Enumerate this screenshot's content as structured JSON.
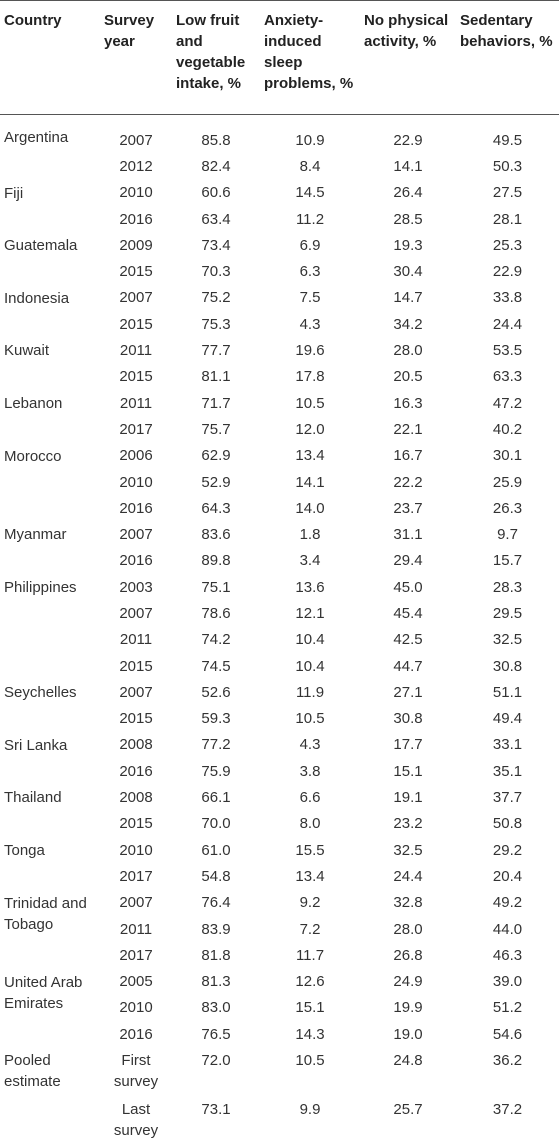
{
  "headers": [
    "Country",
    "Survey year",
    "Low fruit and vegetable intake, %",
    "Anxiety-induced sleep problems, %",
    "No physical activity, %",
    "Sedentary behaviors, %"
  ],
  "rows": [
    {
      "country": "Argentina",
      "year": "2007",
      "fruit": "85.8",
      "sleep": "10.9",
      "nopa": "22.9",
      "sed": "49.5"
    },
    {
      "country": "",
      "year": "2012",
      "fruit": "82.4",
      "sleep": "8.4",
      "nopa": "14.1",
      "sed": "50.3"
    },
    {
      "country": "Fiji",
      "year": "2010",
      "fruit": "60.6",
      "sleep": "14.5",
      "nopa": "26.4",
      "sed": "27.5"
    },
    {
      "country": "",
      "year": "2016",
      "fruit": "63.4",
      "sleep": "11.2",
      "nopa": "28.5",
      "sed": "28.1"
    },
    {
      "country": "Guatemala",
      "year": "2009",
      "fruit": "73.4",
      "sleep": "6.9",
      "nopa": "19.3",
      "sed": "25.3"
    },
    {
      "country": "",
      "year": "2015",
      "fruit": "70.3",
      "sleep": "6.3",
      "nopa": "30.4",
      "sed": "22.9"
    },
    {
      "country": "Indonesia",
      "year": "2007",
      "fruit": "75.2",
      "sleep": "7.5",
      "nopa": "14.7",
      "sed": "33.8"
    },
    {
      "country": "",
      "year": "2015",
      "fruit": "75.3",
      "sleep": "4.3",
      "nopa": "34.2",
      "sed": "24.4"
    },
    {
      "country": "Kuwait",
      "year": "2011",
      "fruit": "77.7",
      "sleep": "19.6",
      "nopa": "28.0",
      "sed": "53.5"
    },
    {
      "country": "",
      "year": "2015",
      "fruit": "81.1",
      "sleep": "17.8",
      "nopa": "20.5",
      "sed": "63.3"
    },
    {
      "country": "Lebanon",
      "year": "2011",
      "fruit": "71.7",
      "sleep": "10.5",
      "nopa": "16.3",
      "sed": "47.2"
    },
    {
      "country": "",
      "year": "2017",
      "fruit": "75.7",
      "sleep": "12.0",
      "nopa": "22.1",
      "sed": "40.2"
    },
    {
      "country": "Morocco",
      "year": "2006",
      "fruit": "62.9",
      "sleep": "13.4",
      "nopa": "16.7",
      "sed": "30.1"
    },
    {
      "country": "",
      "year": "2010",
      "fruit": "52.9",
      "sleep": "14.1",
      "nopa": "22.2",
      "sed": "25.9"
    },
    {
      "country": "",
      "year": "2016",
      "fruit": "64.3",
      "sleep": "14.0",
      "nopa": "23.7",
      "sed": "26.3"
    },
    {
      "country": "Myanmar",
      "year": "2007",
      "fruit": "83.6",
      "sleep": "1.8",
      "nopa": "31.1",
      "sed": "9.7"
    },
    {
      "country": "",
      "year": "2016",
      "fruit": "89.8",
      "sleep": "3.4",
      "nopa": "29.4",
      "sed": "15.7"
    },
    {
      "country": "Philippines",
      "year": "2003",
      "fruit": "75.1",
      "sleep": "13.6",
      "nopa": "45.0",
      "sed": "28.3"
    },
    {
      "country": "",
      "year": "2007",
      "fruit": "78.6",
      "sleep": "12.1",
      "nopa": "45.4",
      "sed": "29.5"
    },
    {
      "country": "",
      "year": "2011",
      "fruit": "74.2",
      "sleep": "10.4",
      "nopa": "42.5",
      "sed": "32.5"
    },
    {
      "country": "",
      "year": "2015",
      "fruit": "74.5",
      "sleep": "10.4",
      "nopa": "44.7",
      "sed": "30.8"
    },
    {
      "country": "Seychelles",
      "year": "2007",
      "fruit": "52.6",
      "sleep": "11.9",
      "nopa": "27.1",
      "sed": "51.1"
    },
    {
      "country": "",
      "year": "2015",
      "fruit": "59.3",
      "sleep": "10.5",
      "nopa": "30.8",
      "sed": "49.4"
    },
    {
      "country": "Sri Lanka",
      "year": "2008",
      "fruit": "77.2",
      "sleep": "4.3",
      "nopa": "17.7",
      "sed": "33.1"
    },
    {
      "country": "",
      "year": "2016",
      "fruit": "75.9",
      "sleep": "3.8",
      "nopa": "15.1",
      "sed": "35.1"
    },
    {
      "country": "Thailand",
      "year": "2008",
      "fruit": "66.1",
      "sleep": "6.6",
      "nopa": "19.1",
      "sed": "37.7"
    },
    {
      "country": "",
      "year": "2015",
      "fruit": "70.0",
      "sleep": "8.0",
      "nopa": "23.2",
      "sed": "50.8"
    },
    {
      "country": "Tonga",
      "year": "2010",
      "fruit": "61.0",
      "sleep": "15.5",
      "nopa": "32.5",
      "sed": "29.2"
    },
    {
      "country": "",
      "year": "2017",
      "fruit": "54.8",
      "sleep": "13.4",
      "nopa": "24.4",
      "sed": "20.4"
    },
    {
      "country": "Trinidad and Tobago",
      "year": "2007",
      "fruit": "76.4",
      "sleep": "9.2",
      "nopa": "32.8",
      "sed": "49.2"
    },
    {
      "country": "",
      "year": "2011",
      "fruit": "83.9",
      "sleep": "7.2",
      "nopa": "28.0",
      "sed": "44.0"
    },
    {
      "country": "",
      "year": "2017",
      "fruit": "81.8",
      "sleep": "11.7",
      "nopa": "26.8",
      "sed": "46.3"
    },
    {
      "country": "United Arab Emirates",
      "year": "2005",
      "fruit": "81.3",
      "sleep": "12.6",
      "nopa": "24.9",
      "sed": "39.0"
    },
    {
      "country": "",
      "year": "2010",
      "fruit": "83.0",
      "sleep": "15.1",
      "nopa": "19.9",
      "sed": "51.2"
    },
    {
      "country": "",
      "year": "2016",
      "fruit": "76.5",
      "sleep": "14.3",
      "nopa": "19.0",
      "sed": "54.6"
    },
    {
      "country": "Pooled estimate",
      "year": "First survey",
      "fruit": "72.0",
      "sleep": "10.5",
      "nopa": "24.8",
      "sed": "36.2"
    },
    {
      "country": "",
      "year": "Last survey",
      "fruit": "73.1",
      "sleep": "9.9",
      "nopa": "25.7",
      "sed": "37.2"
    }
  ]
}
